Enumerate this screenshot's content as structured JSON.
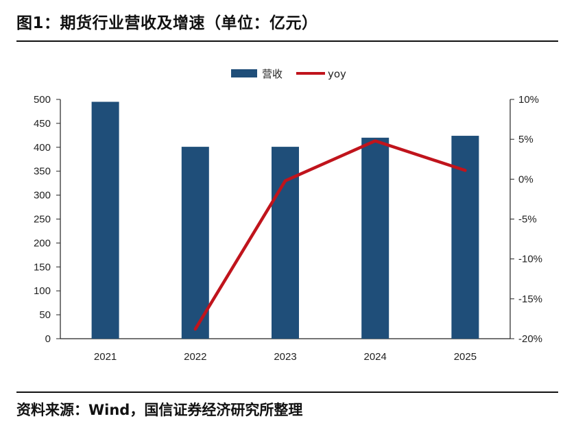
{
  "title": "图1：期货行业营收及增速（单位：亿元）",
  "source": "资料来源：Wind，国信证券经济研究所整理",
  "colors": {
    "bar": "#1f4e79",
    "line": "#c0141c",
    "axis": "#222222"
  },
  "chart_data": {
    "type": "bar",
    "categories": [
      "2021",
      "2022",
      "2023",
      "2024",
      "2025"
    ],
    "series": [
      {
        "name": "营收",
        "type": "bar",
        "axis": "left",
        "values": [
          495,
          401,
          401,
          420,
          424
        ]
      },
      {
        "name": "yoy",
        "type": "line",
        "axis": "right",
        "values": [
          null,
          -18.8,
          -0.2,
          4.8,
          1.1
        ]
      }
    ],
    "y_left": {
      "lim": [
        0,
        500
      ],
      "ticks": [
        "0",
        "50",
        "100",
        "150",
        "200",
        "250",
        "300",
        "350",
        "400",
        "450",
        "500"
      ]
    },
    "y_right": {
      "lim": [
        -20,
        10
      ],
      "ticks": [
        "-20%",
        "-15%",
        "-10%",
        "-5%",
        "0%",
        "5%",
        "10%"
      ],
      "unit": "%"
    },
    "legend_position": "top-center",
    "grid": false
  }
}
